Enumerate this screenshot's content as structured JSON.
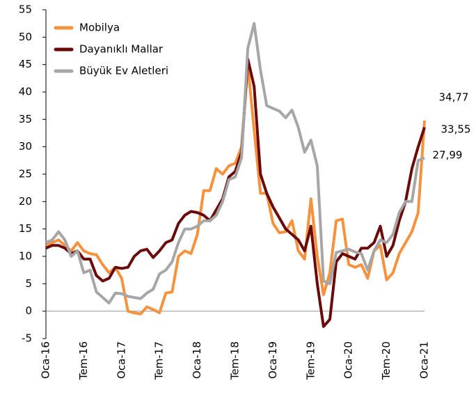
{
  "chart_data": {
    "type": "line",
    "categories": [
      "Oca-16",
      null,
      null,
      null,
      null,
      null,
      "Tem-16",
      null,
      null,
      null,
      null,
      null,
      "Oca-17",
      null,
      null,
      null,
      null,
      null,
      "Tem-17",
      null,
      null,
      null,
      null,
      null,
      "Oca-18",
      null,
      null,
      null,
      null,
      null,
      "Tem-18",
      null,
      null,
      null,
      null,
      null,
      "Oca-19",
      null,
      null,
      null,
      null,
      null,
      "Tem-19",
      null,
      null,
      null,
      null,
      null,
      "Oca-20",
      null,
      null,
      null,
      null,
      null,
      "Tem-20",
      null,
      null,
      null,
      null,
      null,
      "Oca-21"
    ],
    "series": [
      {
        "name": "Mobilya",
        "color": "#f4923f",
        "values": [
          12,
          12.5,
          13,
          12,
          11,
          12.5,
          11,
          10.5,
          10.3,
          8.5,
          7,
          8,
          6,
          0,
          -0.3,
          -0.5,
          0.8,
          0.3,
          -0.3,
          3.3,
          3.5,
          10,
          11,
          10.5,
          14,
          22,
          22,
          26,
          25,
          26.5,
          27,
          30,
          45,
          33,
          21.5,
          21.5,
          16,
          14.3,
          14.5,
          16.5,
          11,
          9.5,
          20.5,
          10,
          3,
          7,
          16.5,
          16.8,
          8.5,
          8,
          8.5,
          6,
          11,
          12,
          5.7,
          7,
          10.5,
          12.5,
          14.5,
          18,
          34.77
        ],
        "value_labels": [
          null,
          null,
          null,
          null,
          null,
          null,
          null,
          null,
          null,
          null,
          null,
          null,
          null,
          null,
          null,
          null,
          null,
          null,
          null,
          null,
          null,
          null,
          null,
          null,
          null,
          null,
          null,
          null,
          null,
          null,
          null,
          null,
          null,
          null,
          null,
          null,
          null,
          null,
          null,
          null,
          null,
          null,
          null,
          null,
          null,
          null,
          null,
          null,
          null,
          null,
          null,
          null,
          null,
          null,
          null,
          null,
          null,
          null,
          null,
          null,
          "34,77"
        ]
      },
      {
        "name": "Dayanıklı Mallar",
        "color": "#6b0a0a",
        "values": [
          11.5,
          12,
          12,
          11.5,
          10.5,
          11,
          9.5,
          9.5,
          6.5,
          5.5,
          6,
          8,
          7.8,
          8,
          10,
          11,
          11.3,
          9.8,
          11,
          12.5,
          13,
          16,
          17.5,
          18.2,
          18,
          17.5,
          16.5,
          18.5,
          20.5,
          24.5,
          25.5,
          29,
          46,
          41,
          25,
          21.5,
          19,
          17,
          15,
          14,
          13,
          11,
          15.5,
          5,
          -2.8,
          -1.5,
          9,
          10.5,
          10,
          9.5,
          11.5,
          11.5,
          12.5,
          15.5,
          10,
          12,
          16.5,
          20,
          26,
          30,
          33.55
        ],
        "value_labels": [
          null,
          null,
          null,
          null,
          null,
          null,
          null,
          null,
          null,
          null,
          null,
          null,
          null,
          null,
          null,
          null,
          null,
          null,
          null,
          null,
          null,
          null,
          null,
          null,
          null,
          null,
          null,
          null,
          null,
          null,
          null,
          null,
          null,
          null,
          null,
          null,
          null,
          null,
          null,
          null,
          null,
          null,
          null,
          null,
          null,
          null,
          null,
          null,
          null,
          null,
          null,
          null,
          null,
          null,
          null,
          null,
          null,
          null,
          null,
          null,
          "33,55"
        ]
      },
      {
        "name": "Büyük Ev Aletleri",
        "color": "#a6a6a6",
        "values": [
          12.5,
          13,
          14.5,
          13,
          10,
          11,
          7,
          7.5,
          3.5,
          2.5,
          1.5,
          3.3,
          3.2,
          2.7,
          2.5,
          2.3,
          3.3,
          4,
          6.8,
          7.5,
          9,
          12.5,
          15,
          15,
          15.5,
          16.5,
          16.5,
          17.5,
          20,
          24,
          24.5,
          28,
          48,
          52.5,
          44,
          37.5,
          37,
          36.5,
          35.3,
          36.7,
          33.5,
          29,
          31.2,
          26.5,
          5.5,
          5,
          10.7,
          11,
          11.3,
          10.8,
          10.5,
          7.5,
          11,
          13,
          12.5,
          14,
          18,
          20,
          20,
          27.5,
          27.99
        ],
        "value_labels": [
          null,
          null,
          null,
          null,
          null,
          null,
          null,
          null,
          null,
          null,
          null,
          null,
          null,
          null,
          null,
          null,
          null,
          null,
          null,
          null,
          null,
          null,
          null,
          null,
          null,
          null,
          null,
          null,
          null,
          null,
          null,
          null,
          null,
          null,
          null,
          null,
          null,
          null,
          null,
          null,
          null,
          null,
          null,
          null,
          null,
          null,
          null,
          null,
          null,
          null,
          null,
          null,
          null,
          null,
          null,
          null,
          null,
          null,
          null,
          null,
          "27,99"
        ]
      }
    ],
    "ylim": [
      -5,
      55
    ],
    "yticks": [
      -5,
      0,
      5,
      10,
      15,
      20,
      25,
      30,
      35,
      40,
      45,
      50,
      55
    ],
    "legend": "upper left"
  }
}
